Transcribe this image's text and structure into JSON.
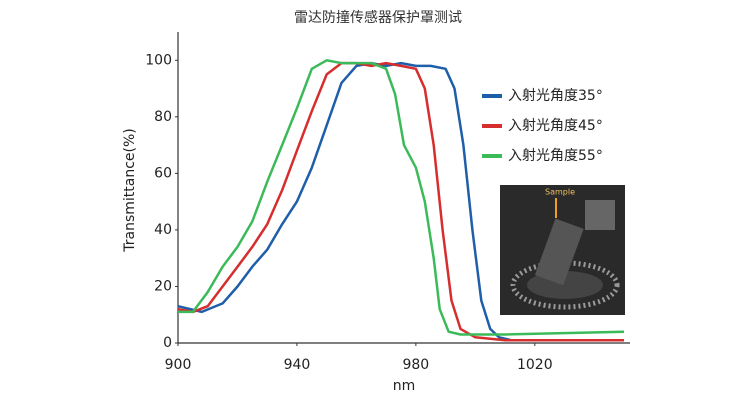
{
  "chart_data": {
    "type": "line",
    "title": "雷达防撞传感器保护罩测试",
    "x_label": "nm",
    "y_label": "Transmittance(%)",
    "xlim": [
      900,
      1050
    ],
    "xticks": [
      900,
      940,
      980,
      1020
    ],
    "ylim": [
      0,
      110
    ],
    "yticks": [
      0,
      20,
      40,
      60,
      80,
      100
    ],
    "inset_label": "Sample",
    "series": [
      {
        "name": "入射光角度35°",
        "color": "#1f5ea8",
        "x": [
          900,
          908,
          915,
          920,
          925,
          930,
          935,
          940,
          945,
          950,
          955,
          960,
          965,
          970,
          975,
          980,
          985,
          990,
          993,
          996,
          999,
          1002,
          1005,
          1008,
          1012,
          1050
        ],
        "values": [
          13,
          11,
          14,
          20,
          27,
          33,
          42,
          50,
          62,
          77,
          92,
          98,
          99,
          98,
          99,
          98,
          98,
          97,
          90,
          70,
          40,
          15,
          5,
          2,
          1,
          1
        ]
      },
      {
        "name": "入射光角度45°",
        "color": "#d62e2e",
        "x": [
          900,
          905,
          910,
          915,
          920,
          925,
          930,
          935,
          940,
          945,
          950,
          955,
          960,
          965,
          970,
          975,
          980,
          983,
          986,
          989,
          992,
          995,
          1000,
          1010,
          1050
        ],
        "values": [
          12,
          11,
          13,
          20,
          27,
          34,
          42,
          54,
          68,
          82,
          95,
          99,
          99,
          98,
          99,
          98,
          97,
          90,
          70,
          40,
          15,
          5,
          2,
          1,
          1
        ]
      },
      {
        "name": "入射光角度55°",
        "color": "#3cba5a",
        "x": [
          900,
          905,
          910,
          915,
          920,
          925,
          930,
          935,
          940,
          945,
          950,
          955,
          960,
          965,
          970,
          973,
          976,
          980,
          983,
          986,
          988,
          991,
          995,
          1010,
          1050
        ],
        "values": [
          11,
          11,
          18,
          27,
          34,
          43,
          57,
          70,
          83,
          97,
          100,
          99,
          99,
          99,
          97,
          88,
          70,
          62,
          50,
          30,
          12,
          4,
          3,
          3,
          4
        ]
      }
    ]
  }
}
